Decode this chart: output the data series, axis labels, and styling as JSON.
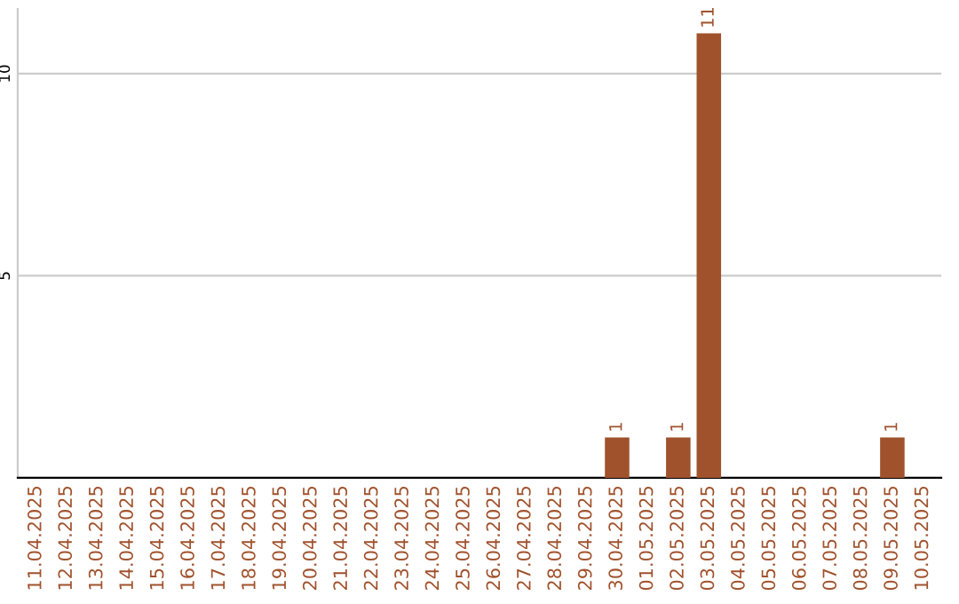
{
  "chart_data": {
    "type": "bar",
    "categories": [
      "11.04.2025",
      "12.04.2025",
      "13.04.2025",
      "14.04.2025",
      "15.04.2025",
      "16.04.2025",
      "17.04.2025",
      "18.04.2025",
      "19.04.2025",
      "20.04.2025",
      "21.04.2025",
      "22.04.2025",
      "23.04.2025",
      "24.04.2025",
      "25.04.2025",
      "26.04.2025",
      "27.04.2025",
      "28.04.2025",
      "29.04.2025",
      "30.04.2025",
      "01.05.2025",
      "02.05.2025",
      "03.05.2025",
      "04.05.2025",
      "05.05.2025",
      "06.05.2025",
      "07.05.2025",
      "08.05.2025",
      "09.05.2025",
      "10.05.2025"
    ],
    "values": [
      0,
      0,
      0,
      0,
      0,
      0,
      0,
      0,
      0,
      0,
      0,
      0,
      0,
      0,
      0,
      0,
      0,
      0,
      0,
      1,
      0,
      1,
      11,
      0,
      0,
      0,
      0,
      0,
      1,
      0
    ],
    "value_labels": [
      null,
      null,
      null,
      null,
      null,
      null,
      null,
      null,
      null,
      null,
      null,
      null,
      null,
      null,
      null,
      null,
      null,
      null,
      null,
      "1",
      null,
      "1",
      "11",
      null,
      null,
      null,
      null,
      null,
      "1",
      null
    ],
    "color": "#a0522d",
    "ylim": [
      0,
      11.6
    ],
    "yticks": [
      5,
      10
    ],
    "grid": "y"
  }
}
